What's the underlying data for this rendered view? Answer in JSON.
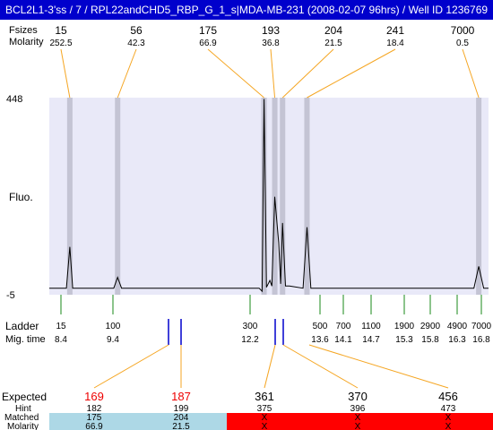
{
  "window": {
    "title": "BCL2L1-3'ss / 7 / RPL22andCHD5_RBP_G_1_s|MDA-MB-231 (2008-02-07 96hrs) / Well ID 1236769"
  },
  "top_table": {
    "size_label": "Fsizes",
    "molarity_label": "Molarity",
    "columns": [
      {
        "size": "15",
        "molarity": "252.5"
      },
      {
        "size": "56",
        "molarity": "42.3"
      },
      {
        "size": "175",
        "molarity": "66.9"
      },
      {
        "size": "193",
        "molarity": "36.8"
      },
      {
        "size": "204",
        "molarity": "21.5"
      },
      {
        "size": "241",
        "molarity": "18.4"
      },
      {
        "size": "7000",
        "molarity": "0.5"
      }
    ]
  },
  "axis": {
    "y_max_label": "448",
    "y_min_label": "-5",
    "y_label": "Fluo."
  },
  "ladder": {
    "label": "Ladder",
    "migtime_label": "Mig. time",
    "entries": [
      {
        "size": "15",
        "time": "8.4"
      },
      {
        "size": "100",
        "time": "9.4"
      },
      {
        "size": "300",
        "time": "12.2"
      },
      {
        "size": "500",
        "time": "13.6"
      },
      {
        "size": "700",
        "time": "14.1"
      },
      {
        "size": "1100",
        "time": "14.7"
      },
      {
        "size": "1900",
        "time": "15.3"
      },
      {
        "size": "2900",
        "time": "15.8"
      },
      {
        "size": "4900",
        "time": "16.3"
      },
      {
        "size": "7000",
        "time": "16.8"
      }
    ]
  },
  "expected_table": {
    "expected_label": "Expected",
    "hint_label": "Hint",
    "matched_label": "Matched",
    "molarity_label": "Molarity",
    "columns": [
      {
        "expected": "169",
        "hint": "182",
        "matched": "175",
        "molarity": "66.9",
        "expected_color": "#ee0000",
        "status": "matched"
      },
      {
        "expected": "187",
        "hint": "199",
        "matched": "204",
        "molarity": "21.5",
        "expected_color": "#ee0000",
        "status": "matched"
      },
      {
        "expected": "361",
        "hint": "375",
        "matched": "X",
        "molarity": "X",
        "expected_color": "#000000",
        "status": "missing"
      },
      {
        "expected": "370",
        "hint": "396",
        "matched": "X",
        "molarity": "X",
        "expected_color": "#000000",
        "status": "missing"
      },
      {
        "expected": "456",
        "hint": "473",
        "matched": "X",
        "molarity": "X",
        "expected_color": "#000000",
        "status": "missing"
      }
    ]
  },
  "colors": {
    "plot_bg": "#e9e9f8",
    "peak_band": "#c4c4d4",
    "connector": "#f5a623",
    "ladder_tick": "#1a8a1a",
    "marker": "#0000cc",
    "matched_bg": "#add8e6",
    "missing_bg": "#ff0000"
  },
  "chart_data": {
    "type": "line",
    "title": "BCL2L1-3'ss / 7 / RPL22andCHD5_RBP_G_1_s|MDA-MB-231 (2008-02-07 96hrs) / Well ID 1236769",
    "xlabel": "Mig. time",
    "ylabel": "Fluo.",
    "ylim": [
      -5,
      448
    ],
    "xlim": [
      8.0,
      17.0
    ],
    "grid": false,
    "series": [
      {
        "values": [
          [
            8.0,
            10
          ],
          [
            8.35,
            10
          ],
          [
            8.42,
            105
          ],
          [
            8.48,
            10
          ],
          [
            9.32,
            10
          ],
          [
            9.4,
            35
          ],
          [
            9.48,
            10
          ],
          [
            12.3,
            10
          ],
          [
            12.36,
            3
          ],
          [
            12.4,
            445
          ],
          [
            12.45,
            12
          ],
          [
            12.52,
            28
          ],
          [
            12.56,
            15
          ],
          [
            12.62,
            220
          ],
          [
            12.7,
            115
          ],
          [
            12.74,
            20
          ],
          [
            12.78,
            160
          ],
          [
            12.84,
            15
          ],
          [
            12.92,
            15
          ],
          [
            13.2,
            10
          ],
          [
            13.28,
            150
          ],
          [
            13.36,
            10
          ],
          [
            16.7,
            10
          ],
          [
            16.8,
            60
          ],
          [
            16.9,
            10
          ],
          [
            17.0,
            10
          ]
        ]
      }
    ],
    "peaks": [
      {
        "size": 15,
        "molarity": 252.5,
        "time": 8.42
      },
      {
        "size": 56,
        "molarity": 42.3,
        "time": 9.4
      },
      {
        "size": 175,
        "molarity": 66.9,
        "time": 12.4
      },
      {
        "size": 193,
        "molarity": 36.8,
        "time": 12.62
      },
      {
        "size": 204,
        "molarity": 21.5,
        "time": 12.78
      },
      {
        "size": 241,
        "molarity": 18.4,
        "time": 13.28
      },
      {
        "size": 7000,
        "molarity": 0.5,
        "time": 16.8
      }
    ]
  }
}
